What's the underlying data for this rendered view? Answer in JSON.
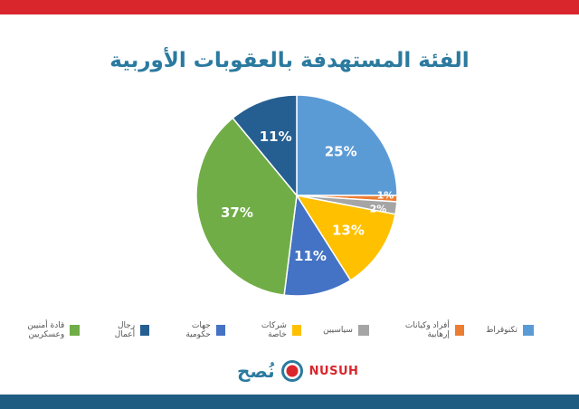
{
  "title": "الفئة المستهدفة بالعقوبات الأوربية",
  "chart_data": {
    "type": "pie",
    "title": "الفئة المستهدفة بالعقوبات الأوربية",
    "slices": [
      {
        "name": "تكنوقراط",
        "value": 25,
        "label": "25%",
        "color": "#5b9bd5"
      },
      {
        "name": "أفراد وكيانات إرهابية",
        "value": 1,
        "label": "1%",
        "color": "#ed7d31"
      },
      {
        "name": "سياسيين",
        "value": 2,
        "label": "2%",
        "color": "#a5a5a5"
      },
      {
        "name": "شركات خاصة",
        "value": 13,
        "label": "13%",
        "color": "#ffc000"
      },
      {
        "name": "جهات حكومية",
        "value": 11,
        "label": "11%",
        "color": "#4472c4"
      },
      {
        "name": "قادة أمنيين وعسكريين",
        "value": 37,
        "label": "37%",
        "color": "#70ad47"
      },
      {
        "name": "رجال أعمال",
        "value": 11,
        "label": "11%",
        "color": "#255e91"
      }
    ],
    "legend_order": [
      "تكنوقراط",
      "أفراد وكيانات إرهابية",
      "سياسيين",
      "شركات خاصة",
      "جهات حكومية",
      "رجال أعمال",
      "قادة أمنيين وعسكريين"
    ],
    "legend_position": "bottom"
  },
  "logo": {
    "arabic": "نُصح",
    "english": "NUSUH"
  },
  "colors": {
    "top_bar": "#d9262c",
    "bottom_bar": "#1f5c82",
    "title": "#2b7a9f"
  }
}
